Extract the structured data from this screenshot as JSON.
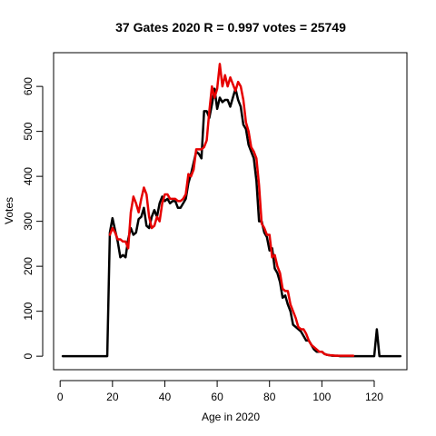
{
  "chart_data": {
    "type": "line",
    "title": "37 Gates 2020 R = 0.997 votes = 25749",
    "xlabel": "Age in 2020",
    "ylabel": "Votes",
    "xlim": [
      -2.5,
      132.5
    ],
    "ylim": [
      -30,
      675
    ],
    "xticks": [
      0,
      20,
      40,
      60,
      80,
      100,
      120
    ],
    "yticks": [
      0,
      100,
      200,
      300,
      400,
      500,
      600
    ],
    "grid": false,
    "legend": "none",
    "series": [
      {
        "color": "#000000",
        "x": [
          1,
          2,
          3,
          4,
          5,
          6,
          7,
          8,
          9,
          10,
          11,
          12,
          13,
          14,
          15,
          16,
          17,
          18,
          19,
          20,
          21,
          22,
          23,
          24,
          25,
          26,
          27,
          28,
          29,
          30,
          31,
          32,
          33,
          34,
          35,
          36,
          37,
          38,
          39,
          40,
          41,
          42,
          43,
          44,
          45,
          46,
          47,
          48,
          49,
          50,
          51,
          52,
          53,
          54,
          55,
          56,
          57,
          58,
          59,
          60,
          61,
          62,
          63,
          64,
          65,
          66,
          67,
          68,
          69,
          70,
          71,
          72,
          73,
          74,
          75,
          76,
          77,
          78,
          79,
          80,
          81,
          82,
          83,
          84,
          85,
          86,
          87,
          88,
          89,
          90,
          91,
          92,
          93,
          94,
          95,
          96,
          97,
          98,
          99,
          100,
          101,
          102,
          103,
          104,
          105,
          106,
          107,
          108,
          109,
          110,
          111,
          112,
          113,
          114,
          115,
          116,
          117,
          118,
          119,
          120,
          121,
          122,
          123,
          124,
          125,
          126,
          127,
          128,
          129,
          130
        ],
        "y": [
          0,
          0,
          0,
          0,
          0,
          0,
          0,
          0,
          0,
          0,
          0,
          0,
          0,
          0,
          0,
          0,
          0,
          0,
          275,
          307,
          280,
          255,
          220,
          225,
          220,
          260,
          285,
          270,
          275,
          305,
          310,
          330,
          290,
          285,
          310,
          325,
          310,
          340,
          355,
          345,
          350,
          340,
          345,
          345,
          330,
          330,
          340,
          350,
          385,
          405,
          430,
          455,
          450,
          440,
          545,
          545,
          530,
          560,
          595,
          550,
          575,
          565,
          570,
          570,
          555,
          575,
          595,
          570,
          555,
          515,
          505,
          470,
          455,
          440,
          390,
          300,
          300,
          275,
          265,
          235,
          240,
          195,
          185,
          165,
          130,
          135,
          115,
          100,
          70,
          65,
          60,
          55,
          45,
          35,
          35,
          25,
          15,
          10,
          10,
          10,
          5,
          3,
          2,
          1,
          1,
          1,
          0,
          0,
          0,
          0,
          0,
          0,
          0,
          0,
          0,
          0,
          0,
          0,
          0,
          0,
          60,
          0,
          0,
          0,
          0,
          0,
          0,
          0,
          0,
          0
        ]
      },
      {
        "color": "#e60000",
        "x": [
          19,
          20,
          21,
          22,
          23,
          24,
          25,
          26,
          27,
          28,
          29,
          30,
          31,
          32,
          33,
          34,
          35,
          36,
          37,
          38,
          39,
          40,
          41,
          42,
          43,
          44,
          45,
          46,
          47,
          48,
          49,
          50,
          51,
          52,
          53,
          54,
          55,
          56,
          57,
          58,
          59,
          60,
          61,
          62,
          63,
          64,
          65,
          66,
          67,
          68,
          69,
          70,
          71,
          72,
          73,
          74,
          75,
          76,
          77,
          78,
          79,
          80,
          81,
          82,
          83,
          84,
          85,
          86,
          87,
          88,
          89,
          90,
          91,
          92,
          93,
          94,
          95,
          96,
          97,
          98,
          99,
          100,
          101,
          102,
          103,
          104,
          105,
          106,
          107,
          108,
          109,
          110,
          111,
          112
        ],
        "y": [
          270,
          285,
          275,
          260,
          260,
          255,
          255,
          240,
          320,
          355,
          340,
          320,
          350,
          375,
          360,
          310,
          285,
          290,
          310,
          300,
          340,
          360,
          360,
          350,
          350,
          350,
          345,
          345,
          350,
          360,
          405,
          400,
          415,
          460,
          460,
          460,
          465,
          480,
          545,
          600,
          575,
          595,
          650,
          600,
          625,
          600,
          620,
          605,
          590,
          610,
          600,
          570,
          520,
          500,
          465,
          455,
          440,
          380,
          295,
          285,
          270,
          270,
          220,
          225,
          200,
          185,
          150,
          145,
          145,
          115,
          100,
          85,
          65,
          60,
          60,
          50,
          35,
          25,
          20,
          15,
          10,
          10,
          5,
          3,
          2,
          2,
          1,
          1,
          1,
          1,
          1,
          1,
          1,
          1
        ]
      }
    ]
  }
}
